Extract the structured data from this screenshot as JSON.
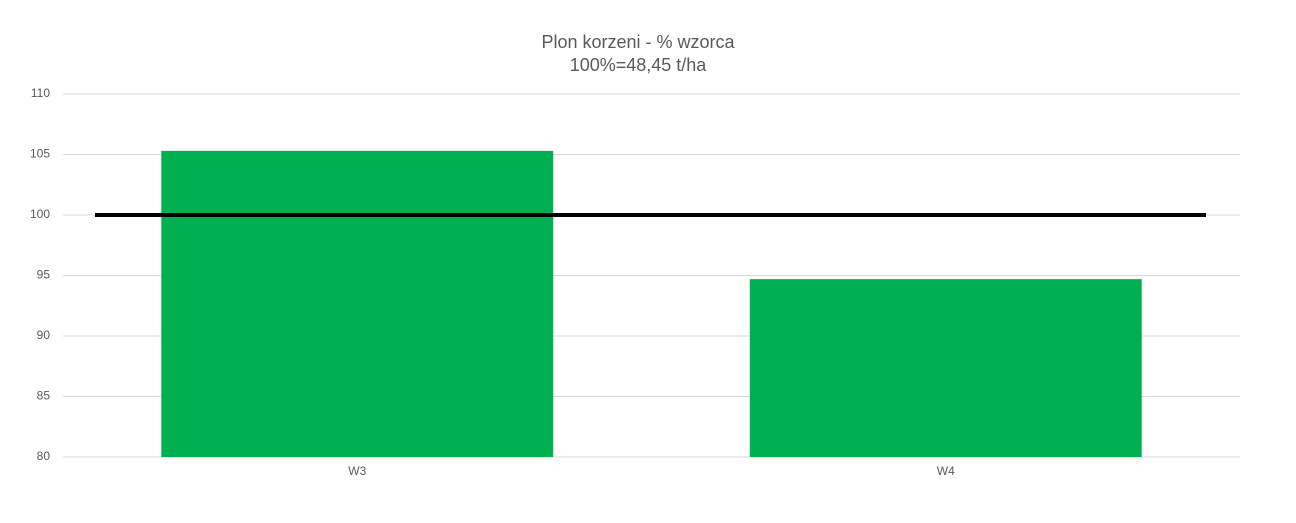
{
  "chart_data": {
    "type": "bar",
    "title": "Plon korzeni - % wzorca",
    "subtitle": "100%=48,45 t/ha",
    "categories": [
      "W3",
      "W4"
    ],
    "values": [
      105.3,
      94.7
    ],
    "color": "#00b050",
    "ylim": [
      80,
      110
    ],
    "yticks": [
      80,
      85,
      90,
      95,
      100,
      105,
      110
    ],
    "grid": true,
    "reference_line": {
      "value": 100,
      "color": "#000000"
    }
  }
}
